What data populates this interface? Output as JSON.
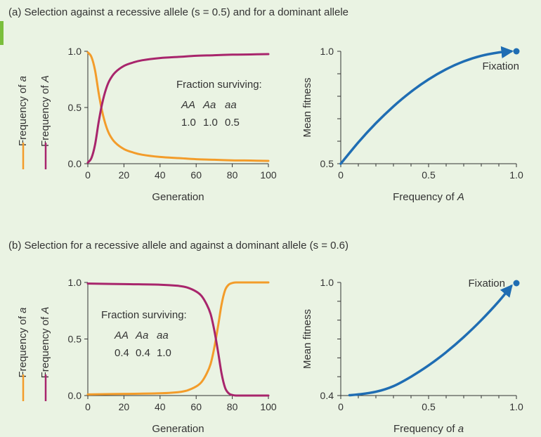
{
  "panel_a": {
    "title": "(a) Selection against a recessive allele (s = 0.5) and for a dominant allele"
  },
  "panel_b": {
    "title": "(b) Selection for a recessive allele and against a dominant allele (s = 0.6)"
  },
  "colors": {
    "background": "#eaf3e3",
    "freq_a": "#f39c2a",
    "freq_A": "#a8256c",
    "fitness": "#1f6db3",
    "accent": "#7bbf3c"
  },
  "chart_data": [
    {
      "id": "a_left",
      "type": "line",
      "xlabel": "Generation",
      "ylabel_primary": "Frequency of A",
      "ylabel_secondary": "Frequency of a",
      "xlim": [
        0,
        100
      ],
      "ylim": [
        0,
        1
      ],
      "xticks": [
        "0",
        "20",
        "40",
        "60",
        "80",
        "100"
      ],
      "yticks": [
        "0.0",
        "0.5",
        "1.0"
      ],
      "inset": {
        "heading": "Fraction surviving:",
        "genotypes": [
          "AA",
          "Aa",
          "aa"
        ],
        "values": [
          "1.0",
          "1.0",
          "0.5"
        ]
      },
      "series": [
        {
          "name": "Frequency of a",
          "color": "#f39c2a",
          "x": [
            0,
            2,
            4,
            6,
            8,
            10,
            12,
            15,
            20,
            25,
            30,
            40,
            50,
            60,
            70,
            80,
            90,
            100
          ],
          "y": [
            0.99,
            0.95,
            0.83,
            0.63,
            0.46,
            0.34,
            0.26,
            0.19,
            0.13,
            0.1,
            0.08,
            0.06,
            0.05,
            0.04,
            0.035,
            0.03,
            0.028,
            0.025
          ]
        },
        {
          "name": "Frequency of A",
          "color": "#a8256c",
          "x": [
            0,
            2,
            4,
            6,
            8,
            10,
            12,
            15,
            20,
            25,
            30,
            40,
            50,
            60,
            70,
            80,
            90,
            100
          ],
          "y": [
            0.01,
            0.05,
            0.17,
            0.37,
            0.54,
            0.66,
            0.74,
            0.81,
            0.87,
            0.9,
            0.92,
            0.94,
            0.95,
            0.96,
            0.965,
            0.97,
            0.972,
            0.975
          ]
        }
      ]
    },
    {
      "id": "a_right",
      "type": "line",
      "xlabel": "Frequency of A",
      "ylabel": "Mean fitness",
      "xlim": [
        0,
        1
      ],
      "ylim": [
        0.5,
        1
      ],
      "xticks": [
        "0",
        "0.5",
        "1.0"
      ],
      "yticks": [
        "0.5",
        "1.0"
      ],
      "annotation": "Fixation",
      "series": [
        {
          "name": "Mean fitness",
          "color": "#1f6db3",
          "x": [
            0,
            0.1,
            0.2,
            0.3,
            0.4,
            0.5,
            0.6,
            0.7,
            0.8,
            0.9,
            0.97
          ],
          "y": [
            0.5,
            0.595,
            0.68,
            0.755,
            0.82,
            0.875,
            0.92,
            0.955,
            0.98,
            0.995,
            1.0
          ]
        }
      ]
    },
    {
      "id": "b_left",
      "type": "line",
      "xlabel": "Generation",
      "ylabel_primary": "Frequency of A",
      "ylabel_secondary": "Frequency of a",
      "xlim": [
        0,
        100
      ],
      "ylim": [
        0,
        1
      ],
      "xticks": [
        "0",
        "20",
        "40",
        "60",
        "80",
        "100"
      ],
      "yticks": [
        "0.0",
        "0.5",
        "1.0"
      ],
      "inset": {
        "heading": "Fraction surviving:",
        "genotypes": [
          "AA",
          "Aa",
          "aa"
        ],
        "values": [
          "0.4",
          "0.4",
          "1.0"
        ]
      },
      "series": [
        {
          "name": "Frequency of a",
          "color": "#f39c2a",
          "x": [
            0,
            20,
            40,
            50,
            55,
            60,
            63,
            66,
            68,
            70,
            72,
            74,
            76,
            78,
            80,
            82,
            84,
            90,
            100
          ],
          "y": [
            0.01,
            0.015,
            0.02,
            0.03,
            0.045,
            0.08,
            0.12,
            0.2,
            0.28,
            0.42,
            0.6,
            0.8,
            0.93,
            0.98,
            0.995,
            1.0,
            1.0,
            1.0,
            1.0
          ]
        },
        {
          "name": "Frequency of A",
          "color": "#a8256c",
          "x": [
            0,
            20,
            40,
            50,
            55,
            60,
            63,
            66,
            68,
            70,
            72,
            74,
            76,
            78,
            80,
            82,
            84,
            90,
            100
          ],
          "y": [
            0.99,
            0.985,
            0.98,
            0.97,
            0.955,
            0.92,
            0.88,
            0.8,
            0.72,
            0.58,
            0.4,
            0.2,
            0.07,
            0.02,
            0.005,
            0.0,
            0.0,
            0.0,
            0.0
          ]
        }
      ]
    },
    {
      "id": "b_right",
      "type": "line",
      "xlabel": "Frequency of a",
      "ylabel": "Mean fitness",
      "xlim": [
        0,
        1
      ],
      "ylim": [
        0.4,
        1
      ],
      "xticks": [
        "0",
        "0.5",
        "1.0"
      ],
      "yticks": [
        "0.4",
        "1.0"
      ],
      "annotation": "Fixation",
      "series": [
        {
          "name": "Mean fitness",
          "color": "#1f6db3",
          "x": [
            0.05,
            0.1,
            0.2,
            0.3,
            0.4,
            0.5,
            0.6,
            0.7,
            0.8,
            0.9,
            0.97
          ],
          "y": [
            0.402,
            0.406,
            0.42,
            0.45,
            0.5,
            0.56,
            0.63,
            0.71,
            0.8,
            0.9,
            0.98
          ]
        }
      ]
    }
  ]
}
